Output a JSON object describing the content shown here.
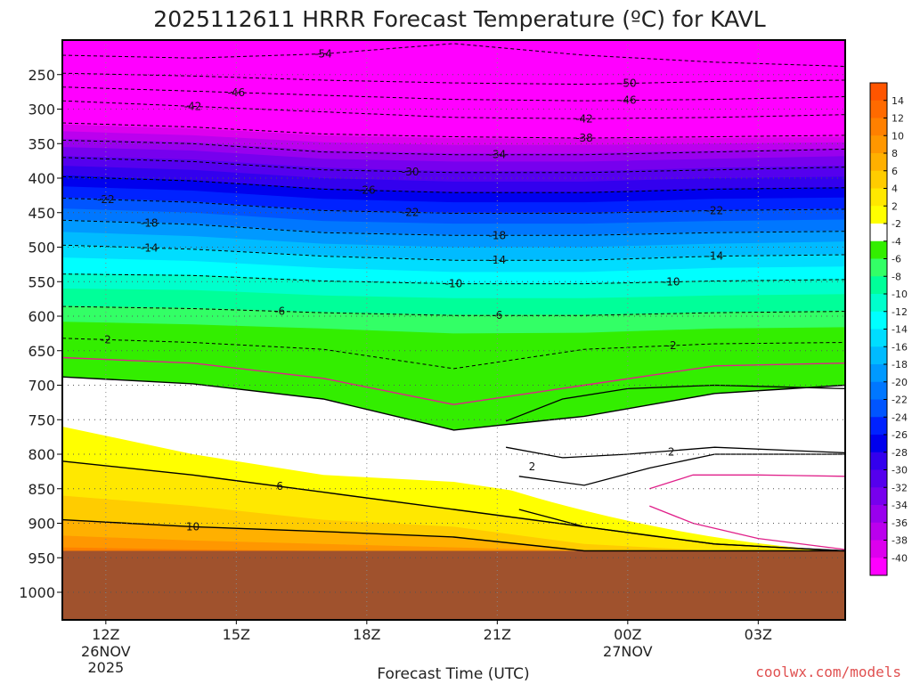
{
  "chart_data": {
    "type": "heatmap",
    "title": "2025112611 HRRR Forecast Temperature (ºC) for KAVL",
    "xlabel": "Forecast Time (UTC)",
    "ylabel": "",
    "credit": "coolwx.com/models",
    "x_ticks": [
      {
        "label": "12Z",
        "hour": 0,
        "sub": [
          "26NOV",
          "2025"
        ]
      },
      {
        "label": "15Z",
        "hour": 3,
        "sub": []
      },
      {
        "label": "18Z",
        "hour": 6,
        "sub": []
      },
      {
        "label": "21Z",
        "hour": 9,
        "sub": []
      },
      {
        "label": "00Z",
        "hour": 12,
        "sub": [
          "27NOV"
        ]
      },
      {
        "label": "03Z",
        "hour": 15,
        "sub": []
      }
    ],
    "x_range_hours": [
      -1,
      17
    ],
    "y_ticks": [
      250,
      300,
      350,
      400,
      450,
      500,
      550,
      600,
      650,
      700,
      750,
      800,
      850,
      900,
      950,
      1000
    ],
    "y_range_hpa": [
      200,
      1040
    ],
    "ground_hpa": 940,
    "colorbar": {
      "ticks": [
        "14",
        "12",
        "10",
        "8",
        "6",
        "4",
        "2",
        "-2",
        "-4",
        "-6",
        "-8",
        "-10",
        "-12",
        "-14",
        "-16",
        "-18",
        "-20",
        "-22",
        "-24",
        "-26",
        "-28",
        "-30",
        "-32",
        "-34",
        "-36",
        "-38",
        "-40"
      ],
      "colors": [
        "#ff5500",
        "#ff6a00",
        "#ff8000",
        "#ff9700",
        "#ffb000",
        "#ffcc00",
        "#ffe800",
        "#ffff00",
        "#ffffff",
        "#33ee00",
        "#33ff66",
        "#00ff99",
        "#00ffcc",
        "#00ffff",
        "#00ddff",
        "#00bbff",
        "#0099ff",
        "#0077ff",
        "#0055ff",
        "#0022ff",
        "#0000ee",
        "#3300ee",
        "#5500ee",
        "#7700ee",
        "#9900ee",
        "#bb00ee",
        "#dd00ee",
        "#ff00ff"
      ]
    },
    "temperature_bands": [
      {
        "t": -56,
        "p": [
          200,
          200,
          200,
          200,
          200,
          200,
          200
        ],
        "color": "#ff00ff"
      },
      {
        "t": -40,
        "p": [
          312,
          318,
          328,
          332,
          334,
          333,
          332
        ],
        "color": "#ff00ff"
      },
      {
        "t": -38,
        "p": [
          322,
          328,
          338,
          342,
          343,
          342,
          340
        ],
        "color": "#dd00ee"
      },
      {
        "t": -36,
        "p": [
          332,
          338,
          348,
          352,
          352,
          350,
          348
        ],
        "color": "#bb00ee"
      },
      {
        "t": -34,
        "p": [
          343,
          348,
          360,
          364,
          364,
          360,
          357
        ],
        "color": "#9900ee"
      },
      {
        "t": -32,
        "p": [
          355,
          360,
          372,
          376,
          376,
          372,
          368
        ],
        "color": "#7700ee"
      },
      {
        "t": -30,
        "p": [
          368,
          373,
          385,
          390,
          390,
          385,
          382
        ],
        "color": "#5500ee"
      },
      {
        "t": -28,
        "p": [
          382,
          388,
          400,
          405,
          405,
          400,
          398
        ],
        "color": "#3300ee"
      },
      {
        "t": -26,
        "p": [
          396,
          403,
          415,
          420,
          420,
          415,
          413
        ],
        "color": "#0000ee"
      },
      {
        "t": -24,
        "p": [
          412,
          418,
          430,
          435,
          435,
          430,
          428
        ],
        "color": "#0022ff"
      },
      {
        "t": -22,
        "p": [
          428,
          434,
          446,
          450,
          450,
          446,
          444
        ],
        "color": "#0055ff"
      },
      {
        "t": -20,
        "p": [
          444,
          450,
          462,
          466,
          466,
          462,
          460
        ],
        "color": "#0077ff"
      },
      {
        "t": -18,
        "p": [
          460,
          466,
          478,
          482,
          482,
          478,
          476
        ],
        "color": "#0099ff"
      },
      {
        "t": -16,
        "p": [
          478,
          484,
          495,
          500,
          500,
          495,
          492
        ],
        "color": "#00bbff"
      },
      {
        "t": -14,
        "p": [
          496,
          502,
          512,
          518,
          518,
          512,
          510
        ],
        "color": "#00ddff"
      },
      {
        "t": -12,
        "p": [
          515,
          520,
          530,
          536,
          536,
          530,
          528
        ],
        "color": "#00ffff"
      },
      {
        "t": -10,
        "p": [
          538,
          540,
          548,
          552,
          552,
          548,
          546
        ],
        "color": "#00ffcc"
      },
      {
        "t": -8,
        "p": [
          560,
          562,
          570,
          574,
          574,
          570,
          568
        ],
        "color": "#00ff99"
      },
      {
        "t": -6,
        "p": [
          585,
          588,
          594,
          598,
          598,
          594,
          592
        ],
        "color": "#33ff66"
      },
      {
        "t": -4,
        "p": [
          608,
          612,
          618,
          625,
          624,
          618,
          616
        ],
        "color": "#33ee00"
      },
      {
        "t": -2,
        "p": [
          632,
          638,
          648,
          676,
          648,
          640,
          638
        ],
        "color": "#33ee00"
      },
      {
        "t": 2,
        "p": [
          688,
          698,
          720,
          765,
          745,
          712,
          700
        ],
        "color": "#ffffff"
      },
      {
        "t": 4,
        "p": [
          760,
          800,
          830,
          840,
          868,
          905,
          915
        ],
        "color": "#ffff00"
      },
      {
        "t": 6,
        "p": [
          810,
          830,
          855,
          880,
          905,
          930,
          940
        ],
        "color": "#ffe800"
      },
      {
        "t": 8,
        "p": [
          860,
          875,
          895,
          905,
          930,
          940,
          940
        ],
        "color": "#ffcc00"
      },
      {
        "t": 10,
        "p": [
          895,
          905,
          912,
          920,
          940,
          940,
          940
        ],
        "color": "#ffb000"
      },
      {
        "t": 12,
        "p": [
          918,
          925,
          930,
          935,
          940,
          940,
          940
        ],
        "color": "#ff9700"
      },
      {
        "t": 14,
        "p": [
          935,
          938,
          940,
          940,
          940,
          940,
          940
        ],
        "color": "#ff8000"
      }
    ],
    "band_hours": [
      -1,
      2,
      5,
      8,
      11,
      14,
      17
    ],
    "regions": [
      {
        "name": "low-level-cold-pocket",
        "color": "#33ee00",
        "top_hpa": [
          845,
          845
        ],
        "bottom_hpa": [
          925,
          925
        ],
        "hours": [
          13.8,
          17
        ]
      },
      {
        "name": "inversion-white-layer",
        "color": "#ffffff",
        "top_hpa": [
          760,
          800
        ],
        "bottom_hpa": [
          920,
          940
        ],
        "hours": [
          9.2,
          17
        ]
      }
    ],
    "contours": [
      {
        "t": -54,
        "label": "-54",
        "p": [
          222,
          226,
          220,
          205,
          222,
          232,
          238
        ],
        "dashed": true,
        "labels": [
          {
            "hour": 5,
            "text": "-54"
          }
        ]
      },
      {
        "t": -50,
        "label": "-50",
        "p": [
          248,
          252,
          258,
          262,
          264,
          260,
          258
        ],
        "dashed": true,
        "labels": [
          {
            "hour": 12,
            "text": "-50"
          }
        ]
      },
      {
        "t": -46,
        "label": "-46",
        "p": [
          268,
          274,
          280,
          286,
          288,
          286,
          282
        ],
        "dashed": true,
        "labels": [
          {
            "hour": 3,
            "text": "-46"
          },
          {
            "hour": 12,
            "text": "-46"
          }
        ]
      },
      {
        "t": -42,
        "label": "-42",
        "p": [
          288,
          296,
          304,
          312,
          314,
          312,
          308
        ],
        "dashed": true,
        "labels": [
          {
            "hour": 2,
            "text": "-42"
          },
          {
            "hour": 11,
            "text": "-42"
          }
        ]
      },
      {
        "t": -38,
        "label": "-38",
        "p": [
          320,
          326,
          336,
          340,
          342,
          340,
          338
        ],
        "dashed": true,
        "labels": [
          {
            "hour": 11,
            "text": "-38"
          }
        ]
      },
      {
        "t": -34,
        "label": "-34",
        "p": [
          345,
          350,
          362,
          366,
          366,
          362,
          358
        ],
        "dashed": true,
        "labels": [
          {
            "hour": 9,
            "text": "-34"
          }
        ]
      },
      {
        "t": -30,
        "label": "-30",
        "p": [
          370,
          376,
          388,
          392,
          392,
          388,
          384
        ],
        "dashed": true,
        "labels": [
          {
            "hour": 7,
            "text": "-30"
          }
        ]
      },
      {
        "t": -26,
        "label": "-26",
        "p": [
          398,
          404,
          416,
          421,
          421,
          416,
          414
        ],
        "dashed": true,
        "labels": [
          {
            "hour": 6,
            "text": "-26"
          }
        ]
      },
      {
        "t": -22,
        "label": "-22",
        "p": [
          429,
          435,
          447,
          451,
          451,
          447,
          445
        ],
        "dashed": true,
        "labels": [
          {
            "hour": 0,
            "text": "-22"
          },
          {
            "hour": 7,
            "text": "-22"
          },
          {
            "hour": 14,
            "text": "-22"
          }
        ]
      },
      {
        "t": -18,
        "label": "-18",
        "p": [
          461,
          467,
          479,
          483,
          483,
          479,
          477
        ],
        "dashed": true,
        "labels": [
          {
            "hour": 1,
            "text": "-18"
          },
          {
            "hour": 9,
            "text": "-18"
          }
        ]
      },
      {
        "t": -14,
        "label": "-14",
        "p": [
          497,
          503,
          513,
          519,
          519,
          513,
          511
        ],
        "dashed": true,
        "labels": [
          {
            "hour": 1,
            "text": "-14"
          },
          {
            "hour": 9,
            "text": "-14"
          },
          {
            "hour": 14,
            "text": "-14"
          }
        ]
      },
      {
        "t": -10,
        "label": "-10",
        "p": [
          539,
          541,
          549,
          553,
          553,
          549,
          547
        ],
        "dashed": true,
        "labels": [
          {
            "hour": 8,
            "text": "-10"
          },
          {
            "hour": 13,
            "text": "-10"
          }
        ]
      },
      {
        "t": -6,
        "label": "-6",
        "p": [
          586,
          589,
          595,
          599,
          599,
          595,
          593
        ],
        "dashed": true,
        "labels": [
          {
            "hour": 4,
            "text": "-6"
          },
          {
            "hour": 9,
            "text": "-6"
          }
        ]
      },
      {
        "t": -2,
        "label": "-2",
        "p": [
          632,
          638,
          648,
          676,
          648,
          640,
          638
        ],
        "dashed": true,
        "labels": [
          {
            "hour": 0,
            "text": "-2"
          },
          {
            "hour": 13,
            "text": "-2"
          }
        ]
      },
      {
        "t": 0,
        "label": "",
        "p": [
          660,
          668,
          690,
          728,
          700,
          672,
          668
        ],
        "dashed": false,
        "color": "#e0208a",
        "labels": []
      },
      {
        "t": 2,
        "label": "2",
        "p": [
          688,
          698,
          720,
          765,
          745,
          712,
          700
        ],
        "dashed": false,
        "labels": []
      },
      {
        "t": 6,
        "label": "6",
        "p": [
          810,
          830,
          855,
          880,
          905,
          930,
          940
        ],
        "dashed": false,
        "labels": [
          {
            "hour": 4,
            "text": "6"
          }
        ]
      },
      {
        "t": 10,
        "label": "10",
        "p": [
          895,
          905,
          912,
          920,
          940,
          940,
          940
        ],
        "dashed": false,
        "labels": [
          {
            "hour": 2,
            "text": "10"
          }
        ]
      }
    ],
    "inner_contours": [
      {
        "name": "two-degree-tongue",
        "label": "2",
        "label_hour": 9.8,
        "label_hpa": 818,
        "hours": [
          9.2,
          10.5,
          12,
          14,
          17
        ],
        "top_hpa": [
          752,
          720,
          705,
          700,
          705
        ],
        "bottom_hpa": [
          790,
          805,
          800,
          790,
          798
        ],
        "color": "#000000"
      },
      {
        "name": "two-degree-lower",
        "label": "2",
        "label_hour": 13,
        "label_hpa": 797,
        "hours": [
          9.5,
          11,
          12.5,
          14,
          17
        ],
        "top_hpa": [
          832,
          845,
          820,
          800,
          800
        ],
        "bottom_hpa": [
          880,
          905,
          918,
          930,
          940
        ],
        "color": "#000000"
      },
      {
        "name": "zero-degree-loop",
        "label": "",
        "label_hour": 0,
        "label_hpa": 0,
        "hours": [
          12.5,
          13.5,
          15,
          17
        ],
        "top_hpa": [
          850,
          830,
          830,
          832
        ],
        "bottom_hpa": [
          875,
          900,
          922,
          938
        ],
        "color": "#e0208a"
      }
    ]
  }
}
